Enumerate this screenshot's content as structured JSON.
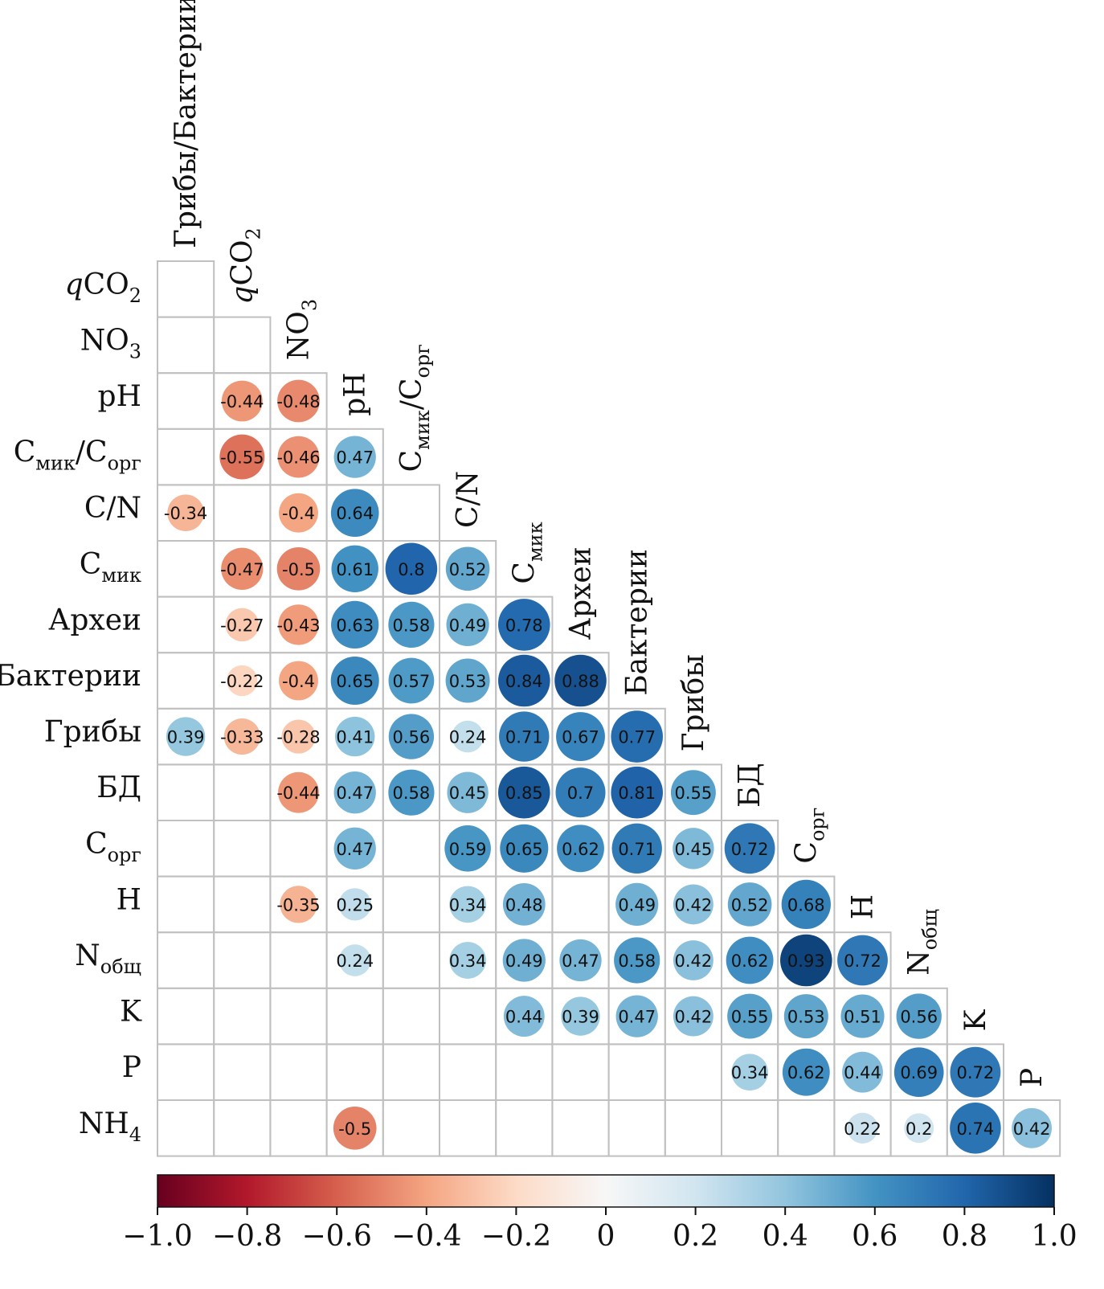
{
  "chart_data": {
    "type": "heatmap",
    "variant": "lower-triangle correlation matrix, circle size and color scaled by value",
    "row_labels": [
      {
        "main": "qCO",
        "sub": "2",
        "italic_prefix": "q"
      },
      {
        "main": "NO",
        "sub": "3"
      },
      {
        "main": "pH",
        "sub": ""
      },
      {
        "main": "C",
        "sub": "мик",
        "rest": "/C",
        "sub2": "орг"
      },
      {
        "main": "C/N",
        "sub": ""
      },
      {
        "main": "C",
        "sub": "мик"
      },
      {
        "main": "Археи",
        "sub": ""
      },
      {
        "main": "Бактерии",
        "sub": ""
      },
      {
        "main": "Грибы",
        "sub": ""
      },
      {
        "main": "БД",
        "sub": ""
      },
      {
        "main": "C",
        "sub": "орг"
      },
      {
        "main": "H",
        "sub": ""
      },
      {
        "main": "N",
        "sub": "общ"
      },
      {
        "main": "K",
        "sub": ""
      },
      {
        "main": "P",
        "sub": ""
      },
      {
        "main": "NH",
        "sub": "4"
      }
    ],
    "column_labels": [
      {
        "main": "Грибы/Бактерии",
        "sub": ""
      },
      {
        "main": "qCO",
        "sub": "2",
        "italic_prefix": "q"
      },
      {
        "main": "NO",
        "sub": "3"
      },
      {
        "main": "pH",
        "sub": ""
      },
      {
        "main": "C",
        "sub": "мик",
        "rest": "/C",
        "sub2": "орг"
      },
      {
        "main": "C/N",
        "sub": ""
      },
      {
        "main": "C",
        "sub": "мик"
      },
      {
        "main": "Археи",
        "sub": ""
      },
      {
        "main": "Бактерии",
        "sub": ""
      },
      {
        "main": "Грибы",
        "sub": ""
      },
      {
        "main": "БД",
        "sub": ""
      },
      {
        "main": "C",
        "sub": "орг"
      },
      {
        "main": "H",
        "sub": ""
      },
      {
        "main": "N",
        "sub": "общ"
      },
      {
        "main": "K",
        "sub": ""
      },
      {
        "main": "P",
        "sub": ""
      }
    ],
    "matrix": [
      [
        null
      ],
      [
        null,
        null
      ],
      [
        null,
        -0.44,
        -0.48
      ],
      [
        null,
        -0.55,
        -0.46,
        0.47
      ],
      [
        -0.34,
        null,
        -0.4,
        0.64,
        null
      ],
      [
        null,
        -0.47,
        -0.5,
        0.61,
        0.8,
        0.52
      ],
      [
        null,
        -0.27,
        -0.43,
        0.63,
        0.58,
        0.49,
        0.78
      ],
      [
        null,
        -0.22,
        -0.4,
        0.65,
        0.57,
        0.53,
        0.84,
        0.88
      ],
      [
        0.39,
        -0.33,
        -0.28,
        0.41,
        0.56,
        0.24,
        0.71,
        0.67,
        0.77
      ],
      [
        null,
        null,
        -0.44,
        0.47,
        0.58,
        0.45,
        0.85,
        0.7,
        0.81,
        0.55
      ],
      [
        null,
        null,
        null,
        0.47,
        null,
        0.59,
        0.65,
        0.62,
        0.71,
        0.45,
        0.72
      ],
      [
        null,
        null,
        -0.35,
        0.25,
        null,
        0.34,
        0.48,
        null,
        0.49,
        0.42,
        0.52,
        0.68
      ],
      [
        null,
        null,
        null,
        0.24,
        null,
        0.34,
        0.49,
        0.47,
        0.58,
        0.42,
        0.62,
        0.93,
        0.72
      ],
      [
        null,
        null,
        null,
        null,
        null,
        null,
        0.44,
        0.39,
        0.47,
        0.42,
        0.55,
        0.53,
        0.51,
        0.56
      ],
      [
        null,
        null,
        null,
        null,
        null,
        null,
        null,
        null,
        null,
        null,
        0.34,
        0.62,
        0.44,
        0.69,
        0.72
      ],
      [
        null,
        null,
        null,
        -0.5,
        null,
        null,
        null,
        null,
        null,
        null,
        null,
        null,
        0.22,
        0.2,
        0.74,
        0.42
      ]
    ],
    "value_labels": [
      [
        null
      ],
      [
        null,
        null
      ],
      [
        null,
        "-0.44",
        "-0.48"
      ],
      [
        null,
        "-0.55",
        "-0.46",
        "0.47"
      ],
      [
        "-0.34",
        null,
        "-0.4",
        "0.64",
        null
      ],
      [
        null,
        "-0.47",
        "-0.5",
        "0.61",
        "0.8",
        "0.52"
      ],
      [
        null,
        "-0.27",
        "-0.43",
        "0.63",
        "0.58",
        "0.49",
        "0.78"
      ],
      [
        null,
        "-0.22",
        "-0.4",
        "0.65",
        "0.57",
        "0.53",
        "0.84",
        "0.88"
      ],
      [
        "0.39",
        "-0.33",
        "-0.28",
        "0.41",
        "0.56",
        "0.24",
        "0.71",
        "0.67",
        "0.77"
      ],
      [
        null,
        null,
        "-0.44",
        "0.47",
        "0.58",
        "0.45",
        "0.85",
        "0.7",
        "0.81",
        "0.55"
      ],
      [
        null,
        null,
        null,
        "0.47",
        null,
        "0.59",
        "0.65",
        "0.62",
        "0.71",
        "0.45",
        "0.72"
      ],
      [
        null,
        null,
        "-0.35",
        "0.25",
        null,
        "0.34",
        "0.48",
        null,
        "0.49",
        "0.42",
        "0.52",
        "0.68"
      ],
      [
        null,
        null,
        null,
        "0.24",
        null,
        "0.34",
        "0.49",
        "0.47",
        "0.58",
        "0.42",
        "0.62",
        "0.93",
        "0.72"
      ],
      [
        null,
        null,
        null,
        null,
        null,
        null,
        "0.44",
        "0.39",
        "0.47",
        "0.42",
        "0.55",
        "0.53",
        "0.51",
        "0.56"
      ],
      [
        null,
        null,
        null,
        null,
        null,
        null,
        null,
        null,
        null,
        null,
        "0.34",
        "0.62",
        "0.44",
        "0.69",
        "0.72"
      ],
      [
        null,
        null,
        null,
        "-0.5",
        null,
        null,
        null,
        null,
        null,
        null,
        null,
        null,
        "0.22",
        "0.2",
        "0.74",
        "0.42"
      ]
    ],
    "colorbar": {
      "range": [
        -1.0,
        1.0
      ],
      "tick_values": [
        -1.0,
        -0.8,
        -0.6,
        -0.4,
        -0.2,
        0,
        0.2,
        0.4,
        0.6,
        0.8,
        1.0
      ],
      "tick_labels": [
        "−1.0",
        "−0.8",
        "−0.6",
        "−0.4",
        "−0.2",
        "0",
        "0.2",
        "0.4",
        "0.6",
        "0.8",
        "1.0"
      ],
      "colormap": "RdBu",
      "stops": [
        "#67001f",
        "#b2182b",
        "#d6604d",
        "#f4a582",
        "#fddbc7",
        "#f7f7f7",
        "#d1e5f0",
        "#92c5de",
        "#4393c3",
        "#2166ac",
        "#053061"
      ],
      "placement": "bottom"
    },
    "grid_color": "#c0c0c0"
  }
}
